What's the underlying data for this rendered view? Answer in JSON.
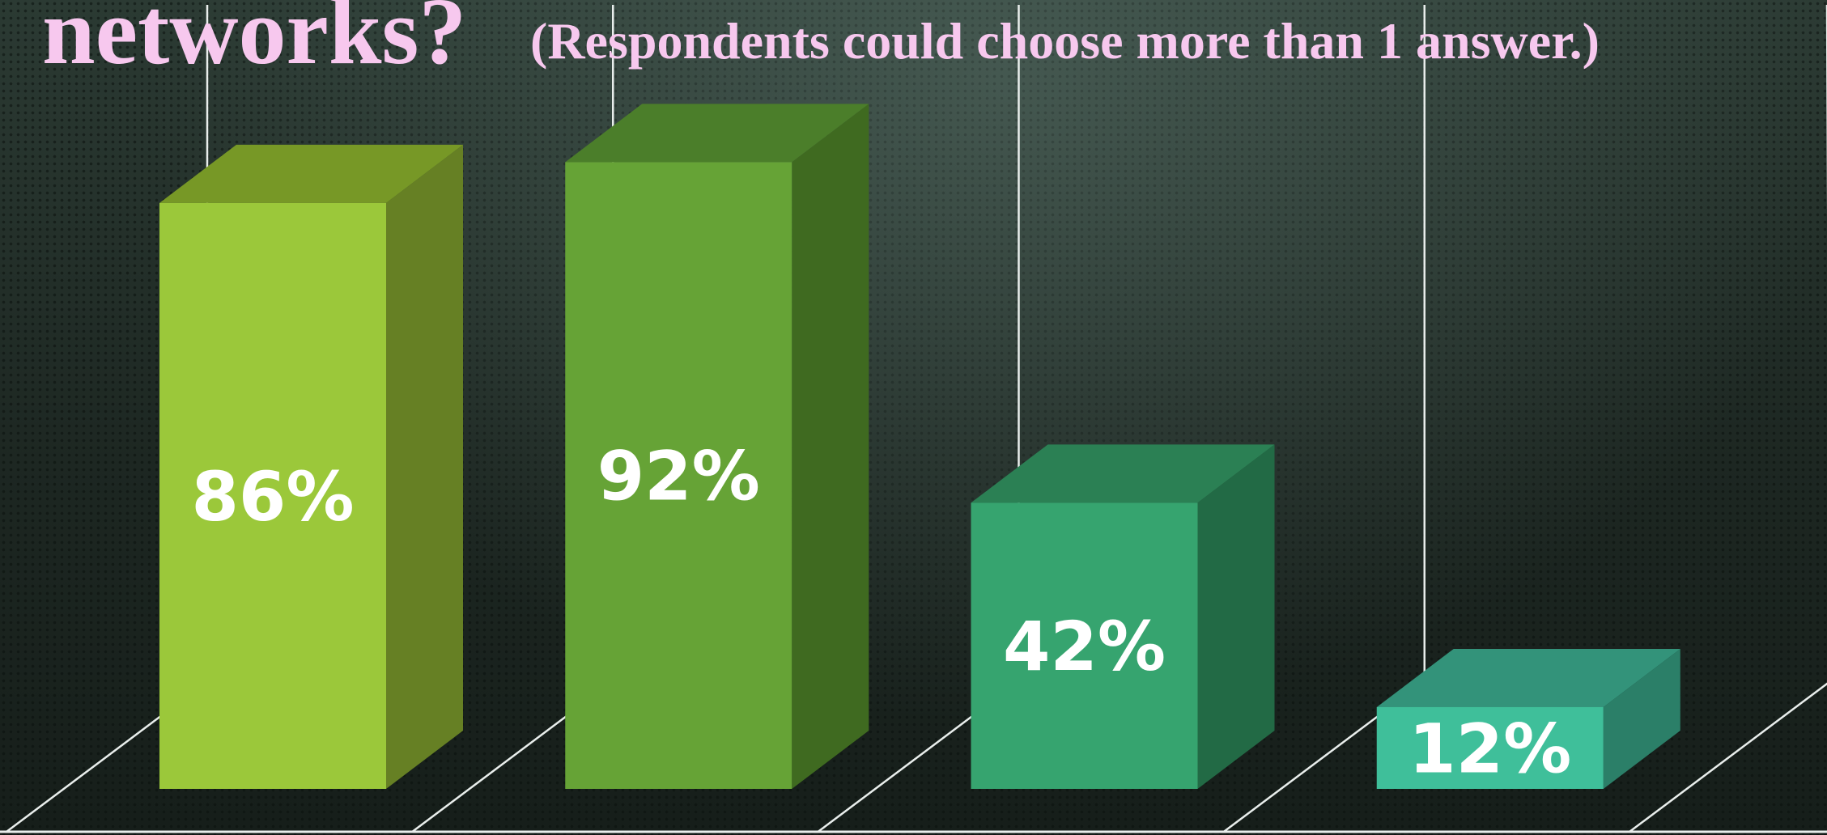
{
  "title": {
    "main": "networks?",
    "note": "(Respondents could choose more than 1 answer.)"
  },
  "chart_data": {
    "type": "bar",
    "style": "3d-column",
    "title": "networks? (Respondents could choose more than 1 answer.)",
    "categories": [
      "",
      "",
      "",
      ""
    ],
    "values": [
      86,
      92,
      42,
      12
    ],
    "data_labels": [
      "86%",
      "92%",
      "42%",
      "12%"
    ],
    "unit": "%",
    "ylim": [
      0,
      100
    ],
    "grid": "vertical back-wall lines",
    "legend": "none",
    "colors": {
      "front": [
        "#9bc83a",
        "#66a336",
        "#36a46f",
        "#3fbf9a"
      ],
      "side": [
        "#668024",
        "#3f6a20",
        "#226a45",
        "#2b7f68"
      ],
      "top": [
        "#779826",
        "#4b7e2a",
        "#2b8054",
        "#33937a"
      ]
    },
    "axis_line_color": "#e9eeec"
  }
}
